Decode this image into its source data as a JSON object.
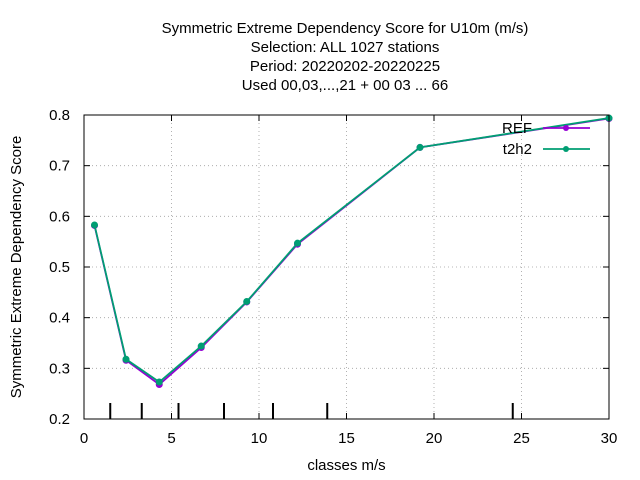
{
  "chart_data": {
    "type": "line",
    "title_lines": [
      "Symmetric Extreme Dependency Score  for U10m (m/s)",
      "Selection: ALL   1027 stations",
      "Period: 20220202-20220225",
      "Used  00,03,...,21  + 00 03 ... 66"
    ],
    "xlabel": "classes m/s",
    "ylabel": "Symmetric Extreme Dependency Score",
    "xlim": [
      0,
      30
    ],
    "ylim": [
      0.2,
      0.8
    ],
    "xticks": [
      "0",
      "5",
      "10",
      "15",
      "20",
      "25",
      "30"
    ],
    "yticks": [
      "0.2",
      "0.3",
      "0.4",
      "0.5",
      "0.6",
      "0.7",
      "0.8"
    ],
    "grid": true,
    "legend_position": "top-right",
    "class_boundaries": [
      1.5,
      3.3,
      5.4,
      8.0,
      10.8,
      13.9,
      24.5
    ],
    "series": [
      {
        "name": "REF",
        "color": "#9400d3",
        "x": [
          0.6,
          2.4,
          4.3,
          6.7,
          9.3,
          12.2,
          19.2,
          30.0
        ],
        "y": [
          0.582,
          0.316,
          0.268,
          0.341,
          0.431,
          0.545,
          0.736,
          0.793
        ]
      },
      {
        "name": "t2h2",
        "color": "#009e73",
        "x": [
          0.6,
          2.4,
          4.3,
          6.7,
          9.3,
          12.2,
          19.2,
          30.0
        ],
        "y": [
          0.583,
          0.318,
          0.273,
          0.344,
          0.432,
          0.547,
          0.736,
          0.794
        ]
      }
    ]
  }
}
